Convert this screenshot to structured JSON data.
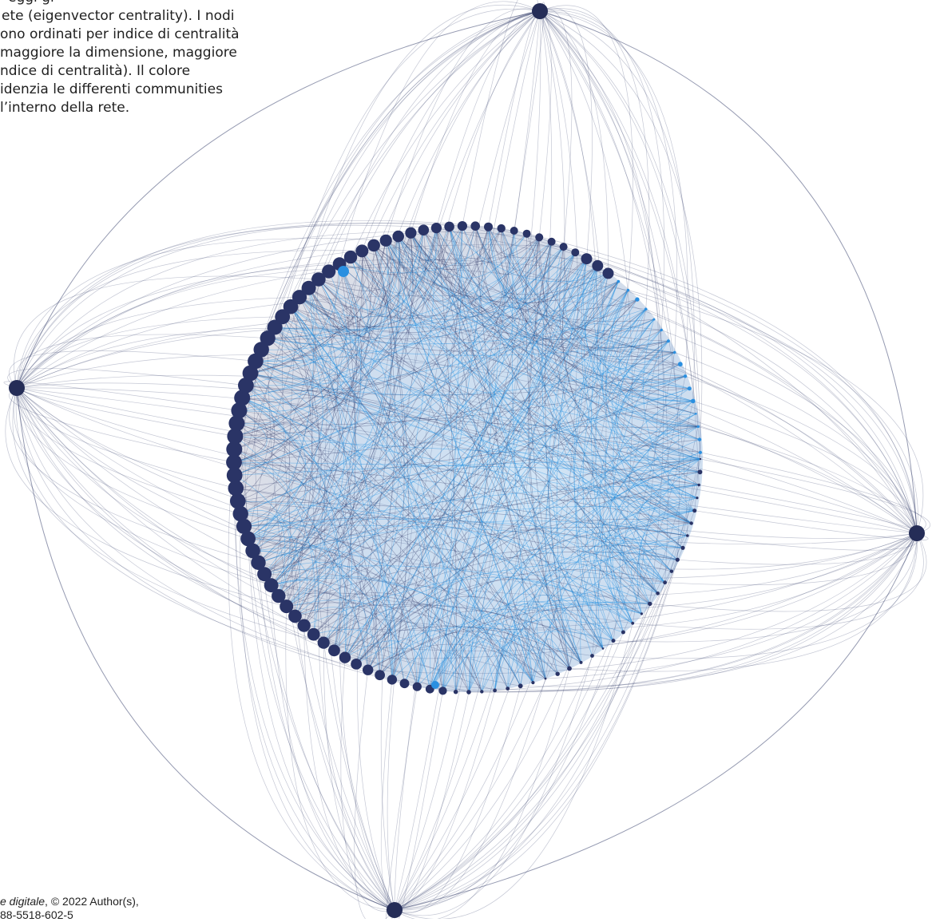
{
  "caption": {
    "lines": [
      "eggi gi",
      "ete (eigenvector centrality). I nodi",
      "ono ordinati per indice di centralità",
      "maggiore la dimensione, maggiore",
      "ndice di centralità). Il colore",
      "idenzia le differenti communities",
      "l’interno della rete."
    ]
  },
  "footer": {
    "title_italic": "e digitale",
    "rights": ", © 2022 Author(s),",
    "isbn": "88-5518-602-5"
  },
  "colors": {
    "hub": "#252d57",
    "edge_dark": "#2b3564",
    "edge_blue": "#1f8ee0",
    "community_dark": "#2a3466",
    "community_blue": "#2a8fe0",
    "background": "#ffffff"
  }
}
